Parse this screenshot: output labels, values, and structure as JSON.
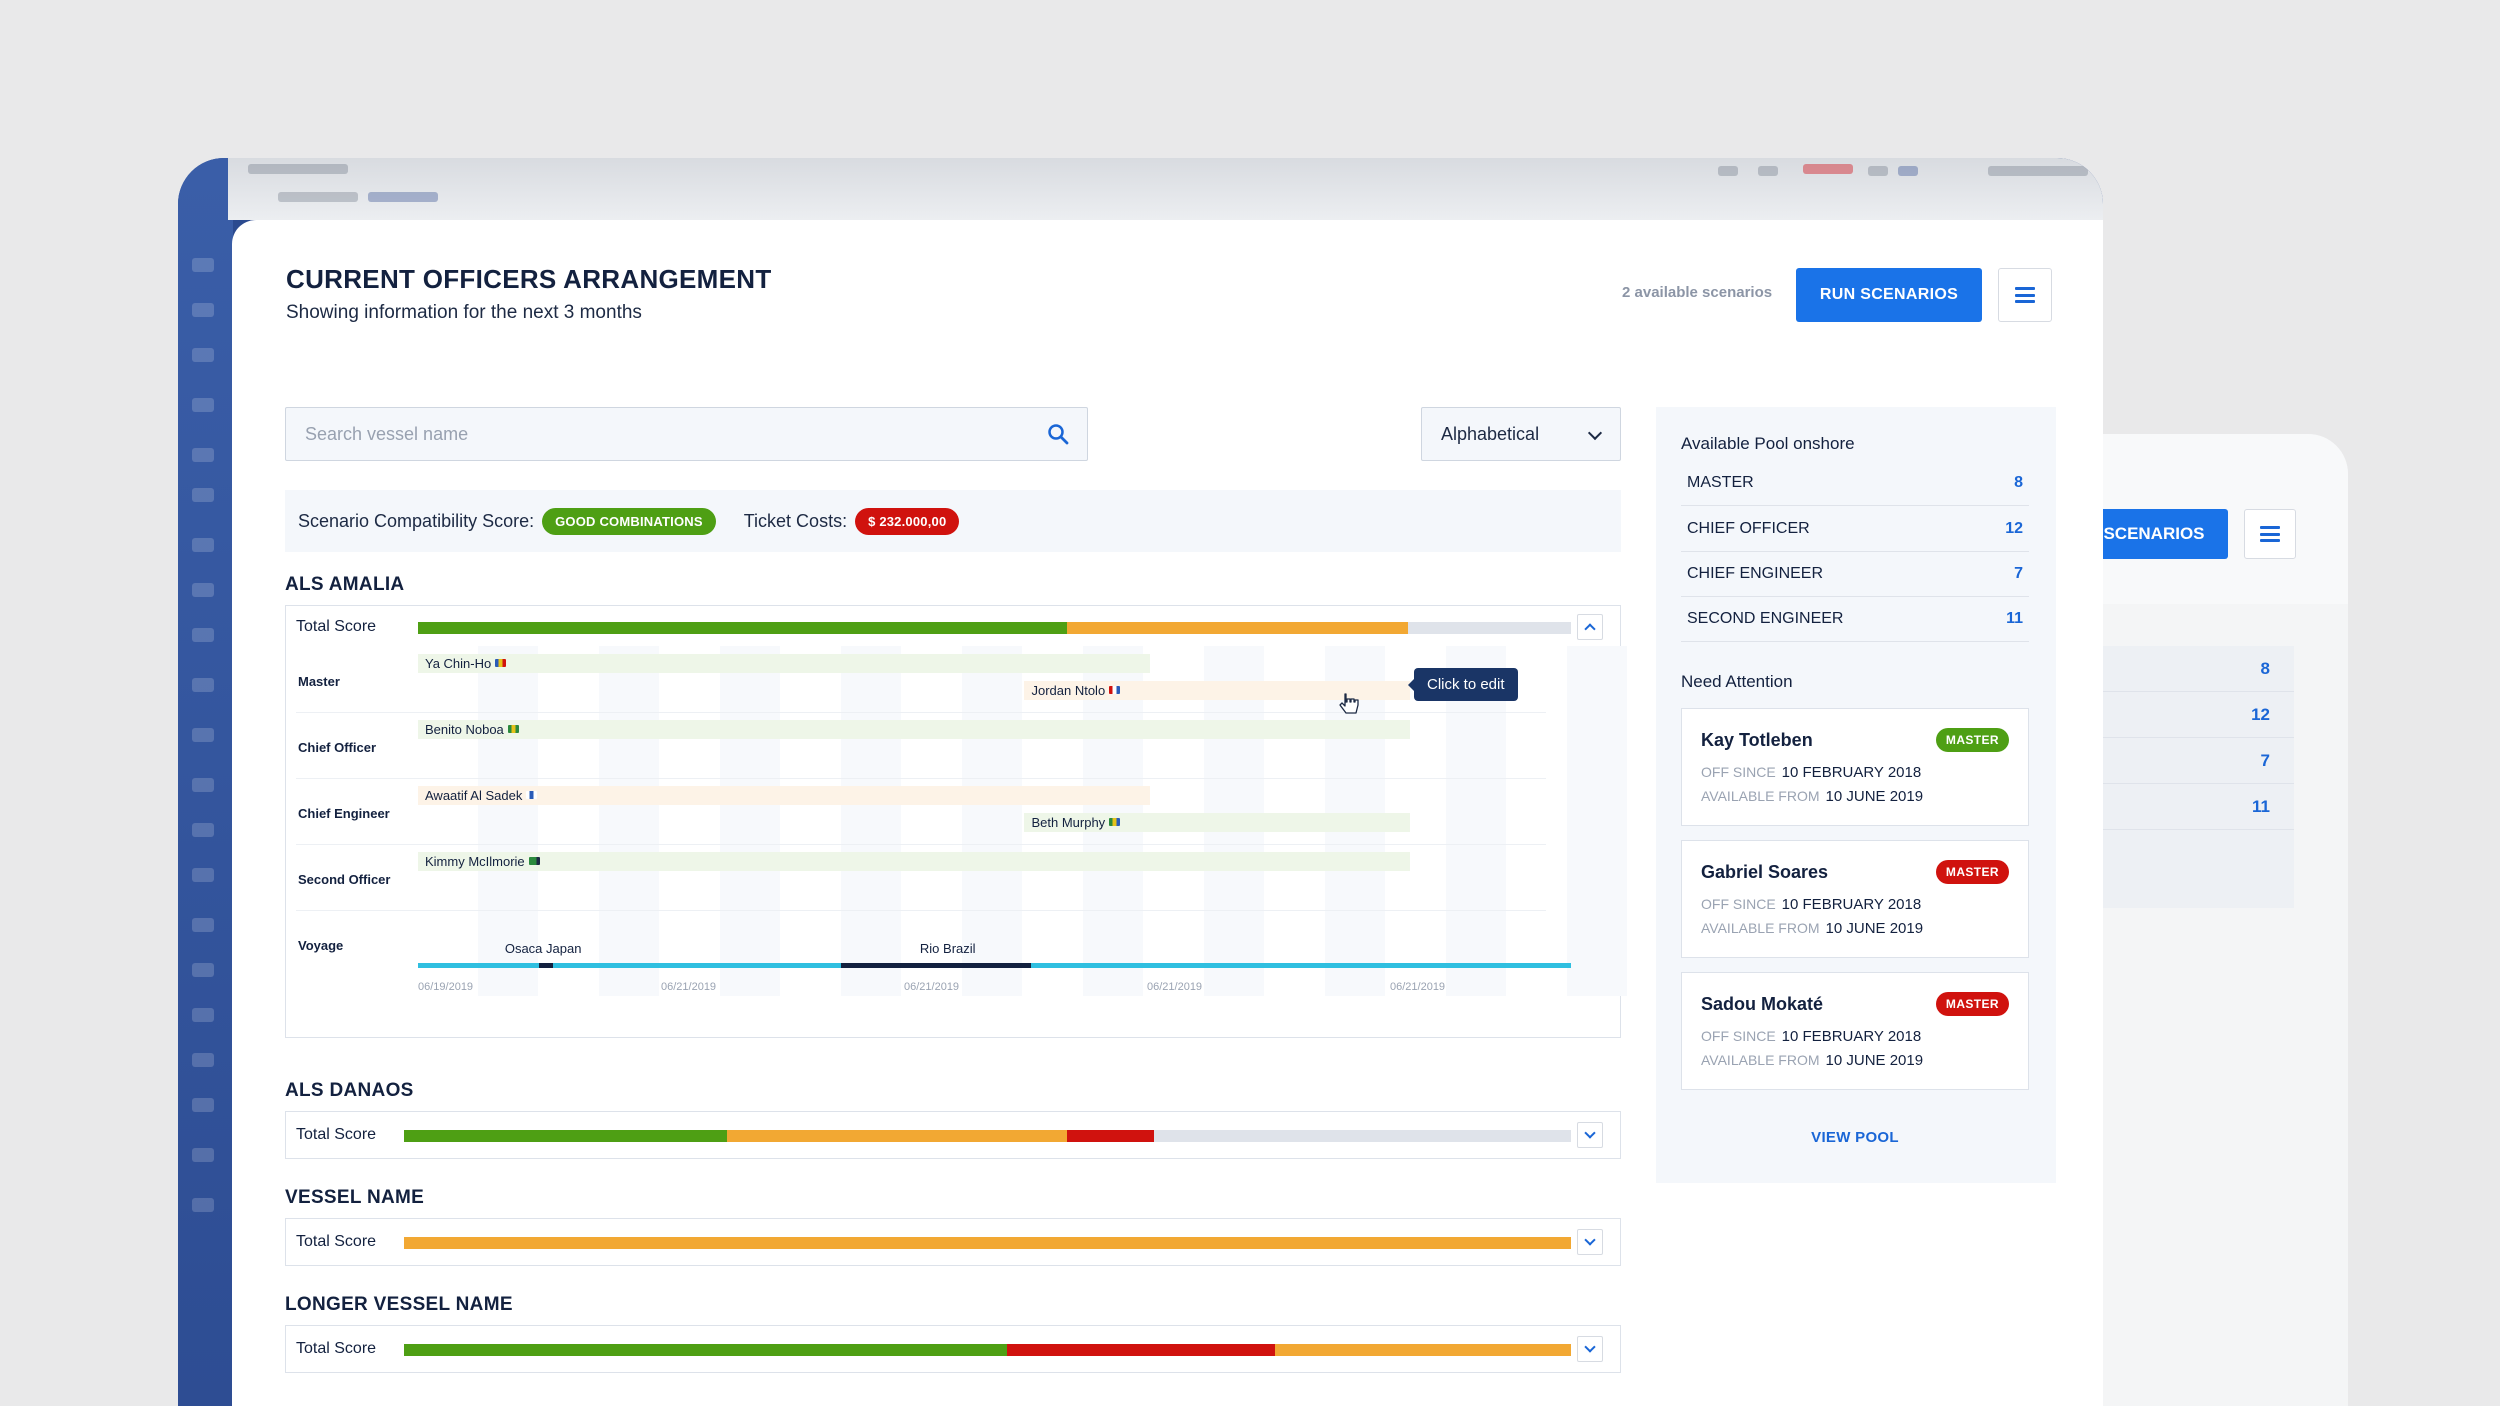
{
  "header": {
    "title": "CURRENT OFFICERS ARRANGEMENT",
    "subtitle": "Showing information for the next 3 months",
    "scenarios_count": "2 available scenarios",
    "run_button": "RUN SCENARIOS"
  },
  "search": {
    "placeholder": "Search vessel name"
  },
  "sort": {
    "selected": "Alphabetical"
  },
  "summary": {
    "compat_label": "Scenario Compatibility Score:",
    "compat_badge": "GOOD COMBINATIONS",
    "ticket_label": "Ticket Costs:",
    "ticket_badge": "$ 232.000,00"
  },
  "colors": {
    "green": "#4e9f14",
    "orange": "#f2a833",
    "red": "#d0120e",
    "accent": "#1a73e8"
  },
  "vessels": [
    {
      "name": "ALS AMALIA",
      "total_label": "Total Score",
      "score": {
        "green": 0.563,
        "orange": 0.296,
        "red": 0
      },
      "gantt": {
        "roles": [
          "Master",
          "Chief Officer",
          "Chief Engineer",
          "Second Officer",
          "Voyage"
        ],
        "officers": [
          {
            "name": "Ya Chin-Ho",
            "row": 0,
            "sub": 0,
            "color": "green",
            "start": 0.0,
            "end": 0.635
          },
          {
            "name": "Jordan Ntolo",
            "row": 0,
            "sub": 1,
            "color": "orange",
            "start": 0.526,
            "end": 0.86
          },
          {
            "name": "Benito Noboa",
            "row": 1,
            "sub": 0,
            "color": "green",
            "start": 0.0,
            "end": 0.86
          },
          {
            "name": "Awaatif Al Sadek",
            "row": 2,
            "sub": 0,
            "color": "orange",
            "start": 0.0,
            "end": 0.635
          },
          {
            "name": "Beth Murphy",
            "row": 2,
            "sub": 1,
            "color": "green",
            "start": 0.526,
            "end": 0.86
          },
          {
            "name": "Kimmy McIlmorie",
            "row": 3,
            "sub": 0,
            "color": "green",
            "start": 0.0,
            "end": 0.86
          }
        ],
        "tooltip": "Click to edit",
        "ports": [
          {
            "name": "Osaca Japan",
            "pos": 0.11
          },
          {
            "name": "Rio Brazil",
            "pos": 0.47
          }
        ],
        "dates": [
          "06/19/2019",
          "06/21/2019",
          "06/21/2019",
          "06/21/2019",
          "06/21/2019"
        ]
      }
    },
    {
      "name": "ALS DANAOS",
      "total_label": "Total Score",
      "score": {
        "green": 0.277,
        "orange": 0.291,
        "red": 0.075
      }
    },
    {
      "name": "VESSEL NAME",
      "total_label": "Total Score",
      "score": {
        "green": 0,
        "orange": 1.0,
        "red": 0
      }
    },
    {
      "name": "LONGER VESSEL NAME",
      "total_label": "Total Score",
      "score": {
        "green": 0.517,
        "red": 0.229,
        "orange": 0.254
      }
    }
  ],
  "pool": {
    "title": "Available Pool onshore",
    "items": [
      {
        "role": "MASTER",
        "count": "8"
      },
      {
        "role": "CHIEF OFFICER",
        "count": "12"
      },
      {
        "role": "CHIEF ENGINEER",
        "count": "7"
      },
      {
        "role": "SECOND ENGINEER",
        "count": "11"
      }
    ]
  },
  "attention": {
    "title": "Need Attention",
    "cards": [
      {
        "name": "Kay Totleben",
        "badge": "MASTER",
        "badge_color": "green",
        "off_label": "OFF SINCE",
        "off_value": "10 FEBRUARY 2018",
        "avail_label": "AVAILABLE FROM",
        "avail_value": "10 JUNE 2019"
      },
      {
        "name": "Gabriel Soares",
        "badge": "MASTER",
        "badge_color": "red",
        "off_label": "OFF SINCE",
        "off_value": "10 FEBRUARY 2018",
        "avail_label": "AVAILABLE FROM",
        "avail_value": "10 JUNE 2019"
      },
      {
        "name": "Sadou Mokaté",
        "badge": "MASTER",
        "badge_color": "red",
        "off_label": "OFF SINCE",
        "off_value": "10 FEBRUARY 2018",
        "avail_label": "AVAILABLE FROM",
        "avail_value": "10 JUNE 2019"
      }
    ],
    "view_pool": "VIEW POOL"
  },
  "background_window": {
    "button": "SCENARIOS",
    "counts": [
      "8",
      "12",
      "7",
      "11"
    ]
  }
}
